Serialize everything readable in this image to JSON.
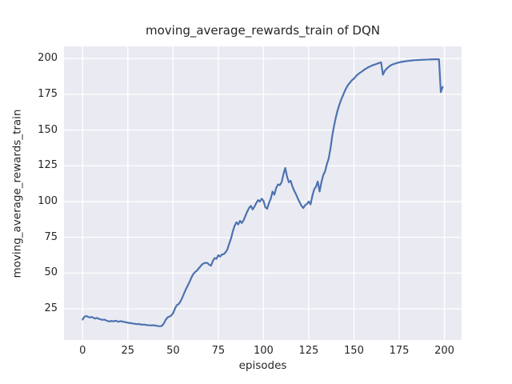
{
  "figure": {
    "background": "#ffffff"
  },
  "chart_data": {
    "type": "line",
    "title": "moving_average_rewards_train of DQN",
    "xlabel": "episodes",
    "ylabel": "moving_average_rewards_train",
    "legend": null,
    "grid": true,
    "x_start": 0,
    "x_step": 1,
    "xlim": [
      -10.3,
      209.5
    ],
    "ylim": [
      3.2,
      208.5
    ],
    "xticks": [
      0,
      25,
      50,
      75,
      100,
      125,
      150,
      175,
      200
    ],
    "yticks": [
      25,
      50,
      75,
      100,
      125,
      150,
      175,
      200
    ],
    "line_color": "#4c72b0",
    "plot_bg": "#eaeaf2",
    "grid_color": "#ffffff",
    "text_color": "#262626",
    "values": [
      17.5,
      19.5,
      20.0,
      19.3,
      19.0,
      19.3,
      18.7,
      18.2,
      18.6,
      18.0,
      17.6,
      17.3,
      17.5,
      16.9,
      16.4,
      16.1,
      16.6,
      16.2,
      16.7,
      16.3,
      16.0,
      16.4,
      16.1,
      15.8,
      15.6,
      15.3,
      15.1,
      14.9,
      14.7,
      14.5,
      14.3,
      14.4,
      14.1,
      13.9,
      14.0,
      13.7,
      13.6,
      13.5,
      13.4,
      13.5,
      13.4,
      13.1,
      12.9,
      12.8,
      13.3,
      15.0,
      17.5,
      19.0,
      19.6,
      20.3,
      22.0,
      25.0,
      27.5,
      28.2,
      30.0,
      32.5,
      35.5,
      38.5,
      41.0,
      43.5,
      46.5,
      49.0,
      50.5,
      51.5,
      53.0,
      54.5,
      56.0,
      56.8,
      57.2,
      57.0,
      55.8,
      55.2,
      58.5,
      60.5,
      60.0,
      62.5,
      61.5,
      63.0,
      63.2,
      64.5,
      66.5,
      70.5,
      74.0,
      79.0,
      83.0,
      85.5,
      84.0,
      86.5,
      85.0,
      87.0,
      90.0,
      93.0,
      95.5,
      97.0,
      94.5,
      96.5,
      99.0,
      101.0,
      100.0,
      102.0,
      100.5,
      96.0,
      95.0,
      99.0,
      102.0,
      107.0,
      104.8,
      109.5,
      112.0,
      111.5,
      113.5,
      119.0,
      123.5,
      117.5,
      113.5,
      114.5,
      110.5,
      107.5,
      105.0,
      102.0,
      99.5,
      97.0,
      95.5,
      97.5,
      98.3,
      100.0,
      98.0,
      104.0,
      108.5,
      110.5,
      114.0,
      107.0,
      113.5,
      118.5,
      121.0,
      126.0,
      130.0,
      137.0,
      146.0,
      153.0,
      159.0,
      164.0,
      168.0,
      171.5,
      174.5,
      177.5,
      180.0,
      182.0,
      183.5,
      185.0,
      186.0,
      187.5,
      188.8,
      189.8,
      190.6,
      191.5,
      192.5,
      193.2,
      194.0,
      194.5,
      195.2,
      195.6,
      196.0,
      196.5,
      197.0,
      197.3,
      188.7,
      191.3,
      192.8,
      194.0,
      195.0,
      195.7,
      196.2,
      196.6,
      197.0,
      197.3,
      197.6,
      197.8,
      198.0,
      198.2,
      198.4,
      198.5,
      198.7,
      198.8,
      198.9,
      199.0,
      199.0,
      199.1,
      199.2,
      199.2,
      199.3,
      199.3,
      199.4,
      199.4,
      199.5,
      199.5,
      199.5,
      199.5,
      176.5,
      180.2
    ]
  }
}
